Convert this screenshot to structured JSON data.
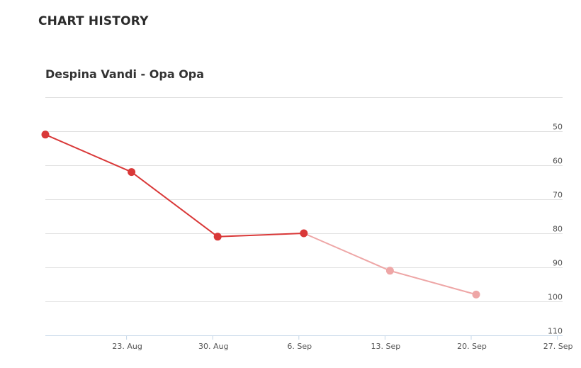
{
  "header": {
    "title": "CHART HISTORY"
  },
  "chart_data": {
    "type": "line",
    "title": "Despina Vandi - Opa Opa",
    "xlabel": "",
    "ylabel": "",
    "y_inverted": true,
    "ylim": [
      40,
      110
    ],
    "y_ticks": [
      50,
      60,
      70,
      80,
      90,
      100,
      110
    ],
    "x_ticks": [
      "23. Aug",
      "30. Aug",
      "6. Sep",
      "13. Sep",
      "20. Sep",
      "27. Sep"
    ],
    "x": [
      "2024-08-16",
      "2024-08-23",
      "2024-08-30",
      "2024-09-06",
      "2024-09-13",
      "2024-09-20"
    ],
    "values": [
      51,
      62,
      81,
      80,
      91,
      98
    ],
    "grid": true,
    "colors": {
      "line": "#d93838",
      "line_faded": "#eea6a6",
      "grid": "#e2e2e2",
      "axis": "#c5d7e8"
    }
  }
}
